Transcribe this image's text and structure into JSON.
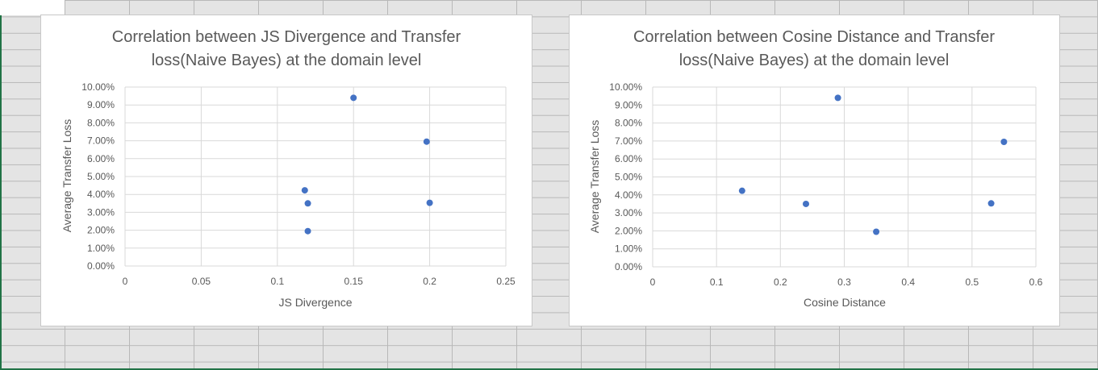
{
  "chart_data": [
    {
      "type": "scatter",
      "title_lines": [
        "Correlation between JS Divergence and Transfer",
        "loss(Naive Bayes) at the domain level"
      ],
      "xlabel": "JS Divergence",
      "ylabel": "Average Transfer Loss",
      "xlim": [
        0,
        0.25
      ],
      "ylim": [
        0,
        0.1
      ],
      "x_ticks": [
        "0",
        "0.05",
        "0.1",
        "0.15",
        "0.2",
        "0.25"
      ],
      "y_ticks": [
        "0.00%",
        "1.00%",
        "2.00%",
        "3.00%",
        "4.00%",
        "5.00%",
        "6.00%",
        "7.00%",
        "8.00%",
        "9.00%",
        "10.00%"
      ],
      "grid": true,
      "marker_color": "#4472c4",
      "points": [
        {
          "x": 0.15,
          "y": 0.094
        },
        {
          "x": 0.198,
          "y": 0.0695
        },
        {
          "x": 0.118,
          "y": 0.0423
        },
        {
          "x": 0.12,
          "y": 0.035
        },
        {
          "x": 0.2,
          "y": 0.0353
        },
        {
          "x": 0.12,
          "y": 0.0195
        }
      ]
    },
    {
      "type": "scatter",
      "title_lines": [
        "Correlation between Cosine Distance and Transfer",
        "loss(Naive Bayes) at the domain level"
      ],
      "xlabel": "Cosine Distance",
      "ylabel": "Average Transfer Loss",
      "xlim": [
        0,
        0.6
      ],
      "ylim": [
        0,
        0.1
      ],
      "x_ticks": [
        "0",
        "0.1",
        "0.2",
        "0.3",
        "0.4",
        "0.5",
        "0.6"
      ],
      "y_ticks": [
        "0.00%",
        "1.00%",
        "2.00%",
        "3.00%",
        "4.00%",
        "5.00%",
        "6.00%",
        "7.00%",
        "8.00%",
        "9.00%",
        "10.00%"
      ],
      "grid": true,
      "marker_color": "#4472c4",
      "points": [
        {
          "x": 0.29,
          "y": 0.094
        },
        {
          "x": 0.55,
          "y": 0.0695
        },
        {
          "x": 0.14,
          "y": 0.0423
        },
        {
          "x": 0.24,
          "y": 0.035
        },
        {
          "x": 0.53,
          "y": 0.0353
        },
        {
          "x": 0.35,
          "y": 0.0195
        }
      ]
    }
  ]
}
